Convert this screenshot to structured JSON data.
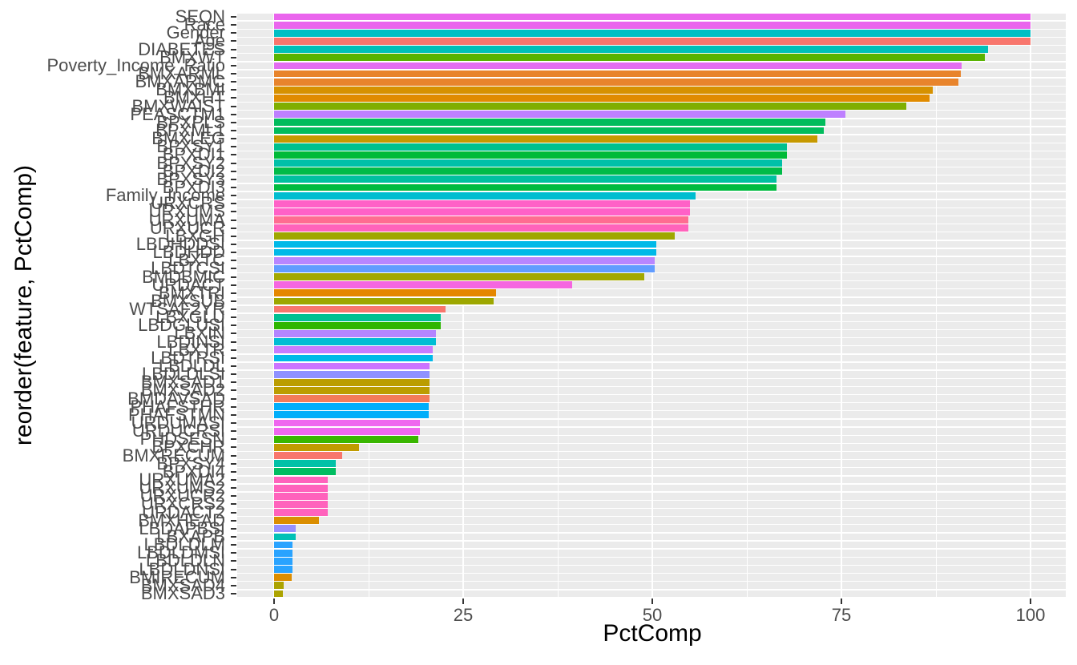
{
  "figure": {
    "background": "#FFFFFF"
  },
  "chart_data": {
    "type": "bar",
    "orientation": "horizontal",
    "title": "",
    "xlabel": "PctComp",
    "ylabel": "reorder(feature, PctComp)",
    "xlim": [
      0,
      100
    ],
    "x_major_ticks": [
      "0",
      "25",
      "50",
      "75",
      "100"
    ],
    "x_major_tick_values": [
      0,
      25,
      50,
      75,
      100
    ],
    "x_minor_tick_values": [
      12.5,
      37.5,
      62.5,
      87.5
    ],
    "grid": "on",
    "legend": "none",
    "panel_bg": "#EBEBEB",
    "grid_color": "#FFFFFF",
    "axis_text_color": "#4D4D4D",
    "axis_title_color": "#000000",
    "tick_mark_color": "#333333",
    "bars": [
      {
        "feature": "SEQN",
        "pct_comp": 100,
        "color": "#EA65ED"
      },
      {
        "feature": "Race",
        "pct_comp": 100,
        "color": "#EA65ED"
      },
      {
        "feature": "Gender",
        "pct_comp": 100,
        "color": "#00BFC4"
      },
      {
        "feature": "Age",
        "pct_comp": 100,
        "color": "#F8766D"
      },
      {
        "feature": "DIABETES",
        "pct_comp": 94.4,
        "color": "#00C0B8"
      },
      {
        "feature": "BMXWT",
        "pct_comp": 94.0,
        "color": "#58B300"
      },
      {
        "feature": "Poverty_Income_Ratio",
        "pct_comp": 90.9,
        "color": "#E36EF0"
      },
      {
        "feature": "BMXARML",
        "pct_comp": 90.8,
        "color": "#E8842C"
      },
      {
        "feature": "BMXARMC",
        "pct_comp": 90.5,
        "color": "#E8842C"
      },
      {
        "feature": "BMXBMI",
        "pct_comp": 87.1,
        "color": "#D69100"
      },
      {
        "feature": "BMXHT",
        "pct_comp": 86.7,
        "color": "#E08B00"
      },
      {
        "feature": "BMXWAIST",
        "pct_comp": 83.6,
        "color": "#7FAE00"
      },
      {
        "feature": "PEASCTM1",
        "pct_comp": 75.5,
        "color": "#BE80FF"
      },
      {
        "feature": "BPXPLS",
        "pct_comp": 72.9,
        "color": "#00BC5C"
      },
      {
        "feature": "BPXML1",
        "pct_comp": 72.7,
        "color": "#00BC5C"
      },
      {
        "feature": "BMXLEG",
        "pct_comp": 71.8,
        "color": "#C69900"
      },
      {
        "feature": "BPXSY1",
        "pct_comp": 67.8,
        "color": "#00C08E"
      },
      {
        "feature": "BPXDI1",
        "pct_comp": 67.8,
        "color": "#00BA38"
      },
      {
        "feature": "BPXSY2",
        "pct_comp": 67.2,
        "color": "#00C0A8"
      },
      {
        "feature": "BPXDI2",
        "pct_comp": 67.2,
        "color": "#00BB48"
      },
      {
        "feature": "BPXSY3",
        "pct_comp": 66.4,
        "color": "#00C0A0"
      },
      {
        "feature": "BPXDI3",
        "pct_comp": 66.4,
        "color": "#00BB40"
      },
      {
        "feature": "Family_Income",
        "pct_comp": 55.7,
        "color": "#00BDD0"
      },
      {
        "feature": "URXCRS",
        "pct_comp": 55.0,
        "color": "#FF61C7"
      },
      {
        "feature": "URXUMS",
        "pct_comp": 55.0,
        "color": "#FF61C7"
      },
      {
        "feature": "URXUMA",
        "pct_comp": 54.8,
        "color": "#FF6C91"
      },
      {
        "feature": "URXUCR",
        "pct_comp": 54.8,
        "color": "#FF63BB"
      },
      {
        "feature": "LBXGH",
        "pct_comp": 53.0,
        "color": "#9FA700"
      },
      {
        "feature": "LBDHDDSI",
        "pct_comp": 50.5,
        "color": "#00B9E8"
      },
      {
        "feature": "LBDHDD",
        "pct_comp": 50.5,
        "color": "#00B9E8"
      },
      {
        "feature": "LBXTC",
        "pct_comp": 50.3,
        "color": "#B886FF"
      },
      {
        "feature": "LBDTCSI",
        "pct_comp": 50.3,
        "color": "#619CFF"
      },
      {
        "feature": "BMDBMIC",
        "pct_comp": 48.9,
        "color": "#A2A800"
      },
      {
        "feature": "URDACT",
        "pct_comp": 39.4,
        "color": "#F566E0"
      },
      {
        "feature": "BMXTRI",
        "pct_comp": 29.3,
        "color": "#E58700"
      },
      {
        "feature": "BMXSUB",
        "pct_comp": 29.0,
        "color": "#9DA700"
      },
      {
        "feature": "WTSAF2YR",
        "pct_comp": 22.7,
        "color": "#F8766D"
      },
      {
        "feature": "LBXGLU",
        "pct_comp": 22.0,
        "color": "#00C092"
      },
      {
        "feature": "LBDGLUSI",
        "pct_comp": 22.0,
        "color": "#2FB600"
      },
      {
        "feature": "LBXIN",
        "pct_comp": 21.4,
        "color": "#B385FF"
      },
      {
        "feature": "LBDINSI",
        "pct_comp": 21.4,
        "color": "#00BDD4"
      },
      {
        "feature": "LBXTR",
        "pct_comp": 21.0,
        "color": "#C77CFF"
      },
      {
        "feature": "LBDTRSI",
        "pct_comp": 21.0,
        "color": "#00B9E8"
      },
      {
        "feature": "LBDLDL",
        "pct_comp": 20.6,
        "color": "#CB74FF"
      },
      {
        "feature": "LBDLDLSI",
        "pct_comp": 20.6,
        "color": "#8F91FF"
      },
      {
        "feature": "BMXSAD1",
        "pct_comp": 20.6,
        "color": "#BB9D00"
      },
      {
        "feature": "BMXSAD2",
        "pct_comp": 20.6,
        "color": "#BB9D00"
      },
      {
        "feature": "BMDAVSAD",
        "pct_comp": 20.6,
        "color": "#F37B59"
      },
      {
        "feature": "PHAFSTHR",
        "pct_comp": 20.4,
        "color": "#00AEFA"
      },
      {
        "feature": "PHAFSTMN",
        "pct_comp": 20.4,
        "color": "#00AEFA"
      },
      {
        "feature": "URDUMASI",
        "pct_comp": 19.3,
        "color": "#EF67EF"
      },
      {
        "feature": "URDUCRSI",
        "pct_comp": 19.3,
        "color": "#EF67EF"
      },
      {
        "feature": "PHDSESN",
        "pct_comp": 19.1,
        "color": "#39B600"
      },
      {
        "feature": "BPXCHR",
        "pct_comp": 11.2,
        "color": "#C09B00"
      },
      {
        "feature": "BMXRECUM",
        "pct_comp": 9.0,
        "color": "#F8766D"
      },
      {
        "feature": "BPXSY4",
        "pct_comp": 8.2,
        "color": "#00C1A7"
      },
      {
        "feature": "BPXDI4",
        "pct_comp": 8.2,
        "color": "#00BD61"
      },
      {
        "feature": "URXUMA2",
        "pct_comp": 7.1,
        "color": "#FF62BC"
      },
      {
        "feature": "URXUMS2",
        "pct_comp": 7.1,
        "color": "#FF62BC"
      },
      {
        "feature": "URXUCR2",
        "pct_comp": 7.1,
        "color": "#FF62BC"
      },
      {
        "feature": "URXCRS2",
        "pct_comp": 7.1,
        "color": "#FF62BC"
      },
      {
        "feature": "URDACT2",
        "pct_comp": 7.1,
        "color": "#FF62BC"
      },
      {
        "feature": "BMXHEAD",
        "pct_comp": 5.9,
        "color": "#DB8E00"
      },
      {
        "feature": "LBDAPBSI",
        "pct_comp": 2.9,
        "color": "#9590FF"
      },
      {
        "feature": "LBXAPB",
        "pct_comp": 2.9,
        "color": "#00C1B6"
      },
      {
        "feature": "LBDLDLM",
        "pct_comp": 2.4,
        "color": "#29A3FF"
      },
      {
        "feature": "LBDLDMSI",
        "pct_comp": 2.4,
        "color": "#29A3FF"
      },
      {
        "feature": "LBDLDLN",
        "pct_comp": 2.4,
        "color": "#29A3FF"
      },
      {
        "feature": "LBDLDNSI",
        "pct_comp": 2.4,
        "color": "#29A3FF"
      },
      {
        "feature": "BMIRECUM",
        "pct_comp": 2.3,
        "color": "#DC8D00"
      },
      {
        "feature": "BMXSAD4",
        "pct_comp": 1.3,
        "color": "#ACA300"
      },
      {
        "feature": "BMXSAD3",
        "pct_comp": 1.2,
        "color": "#ACA300"
      }
    ]
  }
}
